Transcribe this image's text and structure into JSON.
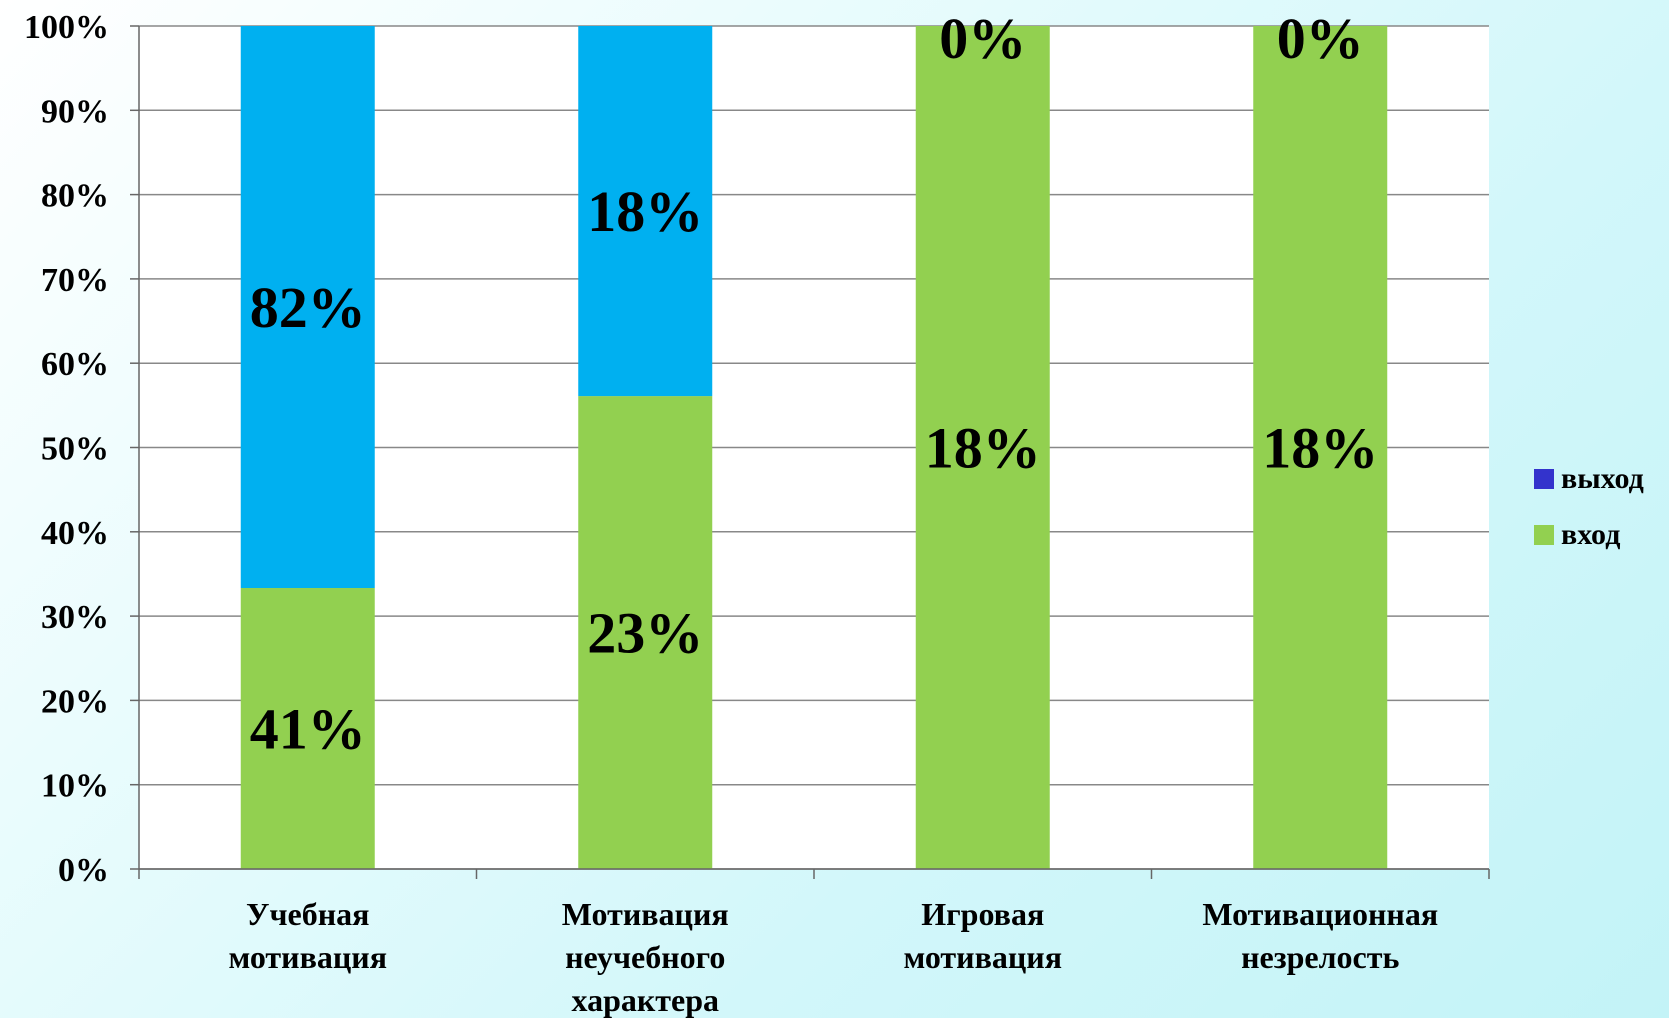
{
  "chart_data": {
    "type": "bar",
    "stacked": "percent",
    "categories": [
      [
        "Учебная",
        "мотивация"
      ],
      [
        "Мотивация",
        "неучебного",
        "характера"
      ],
      [
        "Игровая",
        "мотивация"
      ],
      [
        "Мотивационная",
        "незрелость"
      ]
    ],
    "series": [
      {
        "name": "вход",
        "values": [
          41,
          23,
          18,
          18
        ],
        "labels": [
          "41%",
          "23%",
          "18%",
          "18%"
        ],
        "color": "#92d050"
      },
      {
        "name": "выход",
        "values": [
          82,
          18,
          0,
          0
        ],
        "labels": [
          "82%",
          "18%",
          "0%",
          "0%"
        ],
        "color": "#00b0f0"
      }
    ],
    "legend": [
      {
        "name": "выход",
        "color": "#3333cc"
      },
      {
        "name": "вход",
        "color": "#92d050"
      }
    ],
    "ylim": [
      0,
      100
    ],
    "yticks": [
      "0%",
      "10%",
      "20%",
      "30%",
      "40%",
      "50%",
      "60%",
      "70%",
      "80%",
      "90%",
      "100%"
    ],
    "grid": true,
    "legend_position": "right",
    "colors": {
      "plot_background": "#ffffff",
      "gridline": "#888888",
      "axis": "#666666"
    }
  }
}
